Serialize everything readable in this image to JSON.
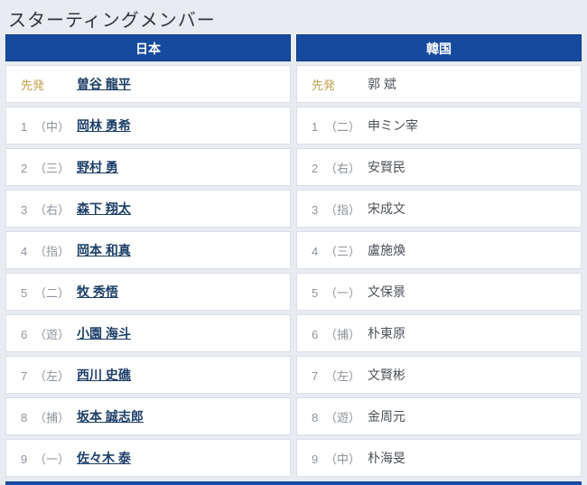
{
  "page": {
    "title": "スターティングメンバー"
  },
  "colors": {
    "page_bg": "#e8ebf2",
    "header_bg": "#164a9e",
    "header_text": "#ffffff",
    "starter_gold": "#c2a14e",
    "link_navy": "#1d3f68",
    "plain_text": "#4d525a",
    "muted_gray": "#8e949d",
    "row_bg": "#ffffff",
    "row_border": "#dcdfe6",
    "title_text": "#2f3540"
  },
  "teams": [
    {
      "name": "日本",
      "starter": {
        "label": "先発",
        "name": "曽谷 龍平"
      },
      "lineup": [
        {
          "order": "1",
          "pos": "（中）",
          "name": "岡林 勇希"
        },
        {
          "order": "2",
          "pos": "（三）",
          "name": "野村 勇"
        },
        {
          "order": "3",
          "pos": "（右）",
          "name": "森下 翔太"
        },
        {
          "order": "4",
          "pos": "（指）",
          "name": "岡本 和真"
        },
        {
          "order": "5",
          "pos": "（二）",
          "name": "牧 秀悟"
        },
        {
          "order": "6",
          "pos": "（遊）",
          "name": "小園 海斗"
        },
        {
          "order": "7",
          "pos": "（左）",
          "name": "西川 史礁"
        },
        {
          "order": "8",
          "pos": "（捕）",
          "name": "坂本 誠志郎"
        },
        {
          "order": "9",
          "pos": "（一）",
          "name": "佐々木 泰"
        }
      ]
    },
    {
      "name": "韓国",
      "starter": {
        "label": "先発",
        "name": "郭 斌"
      },
      "lineup": [
        {
          "order": "1",
          "pos": "（二）",
          "name": "申ミン宰"
        },
        {
          "order": "2",
          "pos": "（右）",
          "name": "安賢民"
        },
        {
          "order": "3",
          "pos": "（指）",
          "name": "宋成文"
        },
        {
          "order": "4",
          "pos": "（三）",
          "name": "盧施煥"
        },
        {
          "order": "5",
          "pos": "（一）",
          "name": "文保景"
        },
        {
          "order": "6",
          "pos": "（捕）",
          "name": "朴東原"
        },
        {
          "order": "7",
          "pos": "（左）",
          "name": "文賢彬"
        },
        {
          "order": "8",
          "pos": "（遊）",
          "name": "金周元"
        },
        {
          "order": "9",
          "pos": "（中）",
          "name": "朴海旻"
        }
      ]
    }
  ]
}
